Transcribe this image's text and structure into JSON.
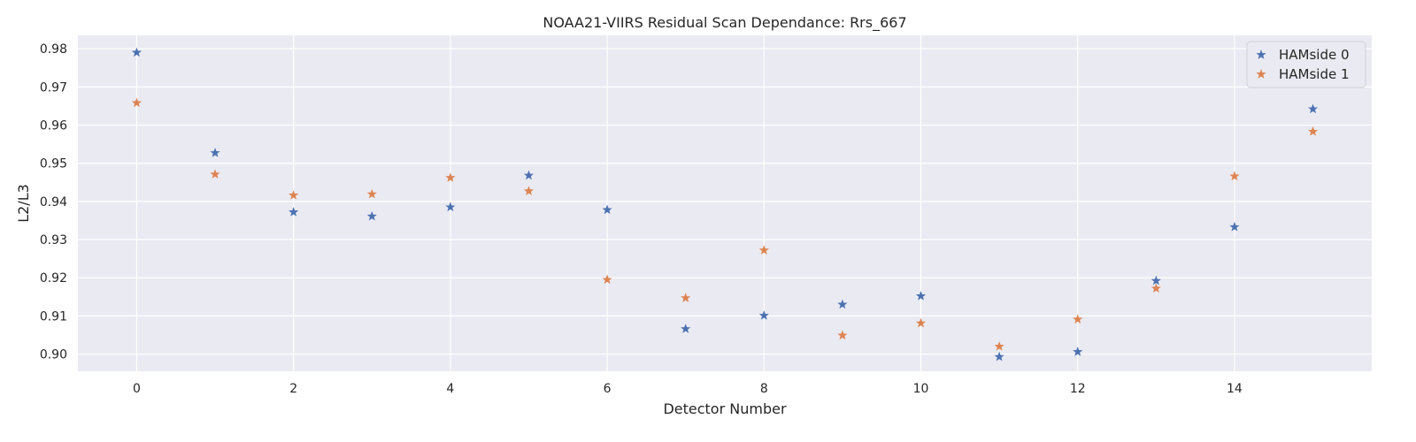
{
  "chart_data": {
    "type": "scatter",
    "title": "NOAA21-VIIRS Residual Scan Dependance: Rrs_667",
    "xlabel": "Detector Number",
    "ylabel": "L2/L3",
    "xlim": [
      -0.75,
      15.75
    ],
    "ylim": [
      0.8955,
      0.9835
    ],
    "x_ticks": [
      0,
      2,
      4,
      6,
      8,
      10,
      12,
      14
    ],
    "y_ticks": [
      0.9,
      0.91,
      0.92,
      0.93,
      0.94,
      0.95,
      0.96,
      0.97,
      0.98
    ],
    "grid": true,
    "legend_position": "top-right",
    "x": [
      0,
      1,
      2,
      3,
      4,
      5,
      6,
      7,
      8,
      9,
      10,
      11,
      12,
      13,
      14,
      15
    ],
    "series": [
      {
        "name": "HAMside 0",
        "color": "#4c72b0",
        "marker": "star",
        "values": [
          0.979,
          0.9527,
          0.9372,
          0.9361,
          0.9385,
          0.9468,
          0.9378,
          0.9066,
          0.9101,
          0.913,
          0.9152,
          0.8993,
          0.9006,
          0.9192,
          0.9333,
          0.9642
        ]
      },
      {
        "name": "HAMside 1",
        "color": "#dd8452",
        "marker": "star",
        "values": [
          0.9658,
          0.9471,
          0.9416,
          0.9419,
          0.9462,
          0.9427,
          0.9195,
          0.9147,
          0.9272,
          0.9049,
          0.9081,
          0.902,
          0.9091,
          0.9172,
          0.9466,
          0.9583
        ]
      }
    ]
  }
}
